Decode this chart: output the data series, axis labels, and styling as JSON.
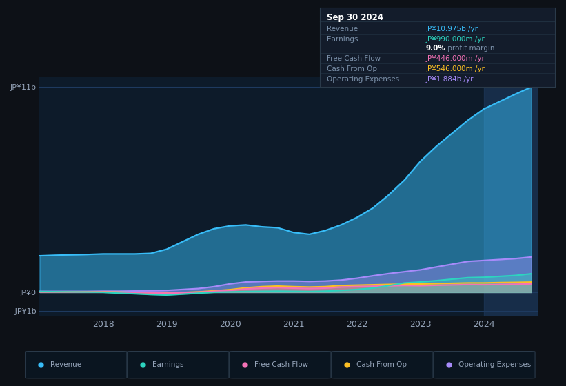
{
  "background_color": "#0d1117",
  "chart_bg_color": "#0d1b2a",
  "info_box": {
    "date": "Sep 30 2024",
    "rows": [
      {
        "label": "Revenue",
        "value": "JP¥10.975b /yr",
        "value_color": "#38bdf8"
      },
      {
        "label": "Earnings",
        "value": "JP¥990.000m /yr",
        "value_color": "#2dd4bf"
      },
      {
        "label": "",
        "value": "9.0% profit margin",
        "value_color": "#e2e8f0"
      },
      {
        "label": "Free Cash Flow",
        "value": "JP¥446.000m /yr",
        "value_color": "#f472b6"
      },
      {
        "label": "Cash From Op",
        "value": "JP¥546.000m /yr",
        "value_color": "#fbbf24"
      },
      {
        "label": "Operating Expenses",
        "value": "JP¥1.884b /yr",
        "value_color": "#a78bfa"
      }
    ]
  },
  "series": {
    "Revenue": {
      "color": "#38bdf8",
      "fill_alpha": 0.5,
      "x": [
        2017.0,
        2017.25,
        2017.5,
        2017.75,
        2018.0,
        2018.25,
        2018.5,
        2018.75,
        2019.0,
        2019.25,
        2019.5,
        2019.75,
        2020.0,
        2020.25,
        2020.5,
        2020.75,
        2021.0,
        2021.25,
        2021.5,
        2021.75,
        2022.0,
        2022.25,
        2022.5,
        2022.75,
        2023.0,
        2023.25,
        2023.5,
        2023.75,
        2024.0,
        2024.25,
        2024.5,
        2024.75
      ],
      "y": [
        1.95,
        1.98,
        2.0,
        2.02,
        2.05,
        2.05,
        2.05,
        2.08,
        2.3,
        2.7,
        3.1,
        3.4,
        3.55,
        3.6,
        3.5,
        3.45,
        3.2,
        3.1,
        3.3,
        3.6,
        4.0,
        4.5,
        5.2,
        6.0,
        7.0,
        7.8,
        8.5,
        9.2,
        9.8,
        10.2,
        10.6,
        10.975
      ]
    },
    "Earnings": {
      "color": "#2dd4bf",
      "fill_alpha": 0.4,
      "x": [
        2017.0,
        2017.25,
        2017.5,
        2017.75,
        2018.0,
        2018.25,
        2018.5,
        2018.75,
        2019.0,
        2019.25,
        2019.5,
        2019.75,
        2020.0,
        2020.25,
        2020.5,
        2020.75,
        2021.0,
        2021.25,
        2021.5,
        2021.75,
        2022.0,
        2022.25,
        2022.5,
        2022.75,
        2023.0,
        2023.25,
        2023.5,
        2023.75,
        2024.0,
        2024.25,
        2024.5,
        2024.75
      ],
      "y": [
        0.04,
        0.03,
        0.02,
        0.01,
        0.0,
        -0.05,
        -0.08,
        -0.12,
        -0.15,
        -0.1,
        -0.05,
        0.0,
        0.02,
        0.04,
        0.05,
        0.06,
        0.05,
        0.04,
        0.06,
        0.1,
        0.15,
        0.22,
        0.35,
        0.5,
        0.55,
        0.62,
        0.7,
        0.78,
        0.8,
        0.85,
        0.9,
        0.99
      ]
    },
    "Free Cash Flow": {
      "color": "#f472b6",
      "fill_alpha": 0.35,
      "x": [
        2017.0,
        2017.25,
        2017.5,
        2017.75,
        2018.0,
        2018.25,
        2018.5,
        2018.75,
        2019.0,
        2019.25,
        2019.5,
        2019.75,
        2020.0,
        2020.25,
        2020.5,
        2020.75,
        2021.0,
        2021.25,
        2021.5,
        2021.75,
        2022.0,
        2022.25,
        2022.5,
        2022.75,
        2023.0,
        2023.25,
        2023.5,
        2023.75,
        2024.0,
        2024.25,
        2024.5,
        2024.75
      ],
      "y": [
        0.02,
        0.02,
        0.01,
        0.01,
        0.01,
        0.0,
        -0.02,
        -0.03,
        -0.05,
        -0.03,
        0.01,
        0.05,
        0.1,
        0.18,
        0.22,
        0.25,
        0.22,
        0.2,
        0.22,
        0.28,
        0.3,
        0.32,
        0.34,
        0.36,
        0.35,
        0.37,
        0.39,
        0.41,
        0.4,
        0.42,
        0.43,
        0.446
      ]
    },
    "Cash From Op": {
      "color": "#fbbf24",
      "fill_alpha": 0.35,
      "x": [
        2017.0,
        2017.25,
        2017.5,
        2017.75,
        2018.0,
        2018.25,
        2018.5,
        2018.75,
        2019.0,
        2019.25,
        2019.5,
        2019.75,
        2020.0,
        2020.25,
        2020.5,
        2020.75,
        2021.0,
        2021.25,
        2021.5,
        2021.75,
        2022.0,
        2022.25,
        2022.5,
        2022.75,
        2023.0,
        2023.25,
        2023.5,
        2023.75,
        2024.0,
        2024.25,
        2024.5,
        2024.75
      ],
      "y": [
        0.03,
        0.03,
        0.02,
        0.02,
        0.02,
        0.01,
        -0.01,
        -0.02,
        -0.03,
        -0.01,
        0.02,
        0.08,
        0.14,
        0.24,
        0.3,
        0.33,
        0.3,
        0.28,
        0.3,
        0.36,
        0.38,
        0.4,
        0.42,
        0.44,
        0.44,
        0.46,
        0.48,
        0.5,
        0.5,
        0.52,
        0.53,
        0.546
      ]
    },
    "Operating Expenses": {
      "color": "#a78bfa",
      "fill_alpha": 0.4,
      "x": [
        2017.0,
        2017.25,
        2017.5,
        2017.75,
        2018.0,
        2018.25,
        2018.5,
        2018.75,
        2019.0,
        2019.25,
        2019.5,
        2019.75,
        2020.0,
        2020.25,
        2020.5,
        2020.75,
        2021.0,
        2021.25,
        2021.5,
        2021.75,
        2022.0,
        2022.25,
        2022.5,
        2022.75,
        2023.0,
        2023.25,
        2023.5,
        2023.75,
        2024.0,
        2024.25,
        2024.5,
        2024.75
      ],
      "y": [
        0.05,
        0.05,
        0.05,
        0.05,
        0.06,
        0.06,
        0.07,
        0.08,
        0.1,
        0.15,
        0.2,
        0.3,
        0.45,
        0.55,
        0.58,
        0.6,
        0.6,
        0.58,
        0.6,
        0.65,
        0.75,
        0.88,
        1.0,
        1.1,
        1.2,
        1.35,
        1.5,
        1.65,
        1.7,
        1.75,
        1.8,
        1.884
      ]
    }
  },
  "ylim": [
    -1.3,
    11.5
  ],
  "xlim": [
    2017.0,
    2024.85
  ],
  "xtick_labels": [
    "2018",
    "2019",
    "2020",
    "2021",
    "2022",
    "2023",
    "2024"
  ],
  "xtick_positions": [
    2018,
    2019,
    2020,
    2021,
    2022,
    2023,
    2024
  ],
  "legend_items": [
    {
      "label": "Revenue",
      "color": "#38bdf8"
    },
    {
      "label": "Earnings",
      "color": "#2dd4bf"
    },
    {
      "label": "Free Cash Flow",
      "color": "#f472b6"
    },
    {
      "label": "Cash From Op",
      "color": "#fbbf24"
    },
    {
      "label": "Operating Expenses",
      "color": "#a78bfa"
    }
  ],
  "shaded_region_start": 2024.0,
  "grid_color": "#1e3a5f",
  "text_color": "#94a3b8",
  "highlight_color": "#1e3a5f",
  "sep_color": "#1e2d3d",
  "box_bg": "#131c2b",
  "box_border": "#2a3a4a"
}
